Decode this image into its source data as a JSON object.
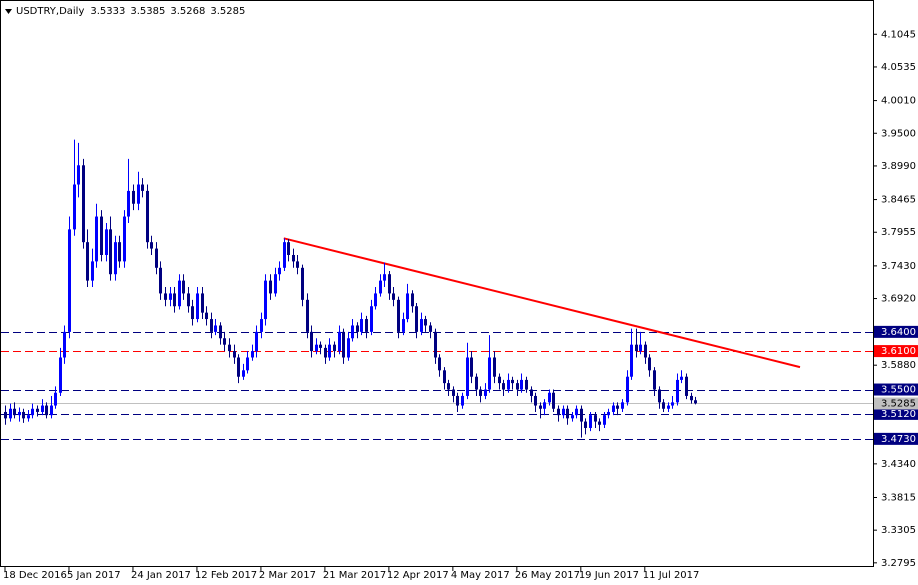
{
  "chart_data": {
    "type": "candlestick",
    "title": "USDTRY,Daily",
    "up_color": "#0000ff",
    "down_color": "#000080",
    "ylim": [
      3.273,
      4.158
    ],
    "yticks": [
      4.1045,
      4.0535,
      {
        "value": 4.001,
        "label": "4.0010"
      },
      {
        "value": 3.95,
        "label": "3.9500"
      },
      {
        "value": 3.899,
        "label": "3.8990"
      },
      3.8465,
      3.7955,
      {
        "value": 3.743,
        "label": "3.7430"
      },
      {
        "value": 3.692,
        "label": "3.6920"
      },
      {
        "value": 3.588,
        "label": "3.5880"
      },
      {
        "value": 3.434,
        "label": "3.4340"
      },
      3.3815,
      3.3305,
      3.2795
    ],
    "levels": [
      {
        "value": 3.64,
        "label": "3.6400",
        "color": "#000080"
      },
      {
        "value": 3.61,
        "label": "3.6100",
        "color": "#ff0000"
      },
      {
        "value": 3.55,
        "label": "3.5500",
        "color": "#000080"
      },
      {
        "value": 3.512,
        "label": "3.5120",
        "color": "#000080"
      },
      {
        "value": 3.473,
        "label": "3.4730",
        "color": "#000080"
      }
    ],
    "trendline": {
      "color": "#ff0000",
      "values": [
        3.786,
        3.585
      ]
    },
    "categories": [
      "18 Dec 2016",
      null,
      null,
      null,
      null,
      null,
      null,
      null,
      null,
      null,
      null,
      null,
      null,
      null,
      "5 Jan 2017",
      null,
      null,
      null,
      null,
      null,
      null,
      null,
      null,
      null,
      null,
      null,
      null,
      null,
      "24 Jan 2017",
      null,
      null,
      null,
      null,
      null,
      null,
      null,
      null,
      null,
      null,
      null,
      null,
      null,
      "12 Feb 2017",
      null,
      null,
      null,
      null,
      null,
      null,
      null,
      null,
      null,
      null,
      null,
      null,
      null,
      "2 Mar 2017",
      null,
      null,
      null,
      null,
      null,
      null,
      null,
      null,
      null,
      null,
      null,
      null,
      null,
      "21 Mar 2017",
      null,
      null,
      null,
      null,
      null,
      null,
      null,
      null,
      null,
      null,
      null,
      null,
      null,
      "12 Apr 2017",
      null,
      null,
      null,
      null,
      null,
      null,
      null,
      null,
      null,
      null,
      null,
      null,
      null,
      "4 May 2017",
      null,
      null,
      null,
      null,
      null,
      null,
      null,
      null,
      null,
      null,
      null,
      null,
      null,
      "26 May 2017",
      null,
      null,
      null,
      null,
      null,
      null,
      null,
      null,
      null,
      null,
      null,
      null,
      null,
      "19 Jun 2017",
      null,
      null,
      null,
      null,
      null,
      null,
      null,
      null,
      null,
      null,
      null,
      null,
      null,
      "11 Jul 2017",
      null,
      null,
      null,
      null,
      null,
      null,
      null,
      null,
      null,
      null,
      null
    ],
    "ohlc": [
      [
        3.515,
        3.525,
        3.495,
        3.505
      ],
      [
        3.505,
        3.528,
        3.5,
        3.52
      ],
      [
        3.52,
        3.53,
        3.505,
        3.51
      ],
      [
        3.51,
        3.522,
        3.5,
        3.515
      ],
      [
        3.515,
        3.52,
        3.498,
        3.505
      ],
      [
        3.505,
        3.518,
        3.5,
        3.51
      ],
      [
        3.51,
        3.528,
        3.505,
        3.52
      ],
      [
        3.52,
        3.525,
        3.508,
        3.515
      ],
      [
        3.515,
        3.535,
        3.51,
        3.525
      ],
      [
        3.525,
        3.53,
        3.505,
        3.51
      ],
      [
        3.51,
        3.54,
        3.505,
        3.525
      ],
      [
        3.525,
        3.555,
        3.52,
        3.545
      ],
      [
        3.545,
        3.615,
        3.54,
        3.6
      ],
      [
        3.6,
        3.65,
        3.59,
        3.64
      ],
      [
        3.64,
        3.82,
        3.63,
        3.8
      ],
      [
        3.8,
        3.94,
        3.79,
        3.87
      ],
      [
        3.87,
        3.935,
        3.85,
        3.9
      ],
      [
        3.9,
        3.91,
        3.77,
        3.78
      ],
      [
        3.78,
        3.8,
        3.71,
        3.72
      ],
      [
        3.72,
        3.77,
        3.71,
        3.75
      ],
      [
        3.75,
        3.84,
        3.74,
        3.82
      ],
      [
        3.82,
        3.83,
        3.75,
        3.76
      ],
      [
        3.76,
        3.81,
        3.75,
        3.8
      ],
      [
        3.8,
        3.82,
        3.72,
        3.73
      ],
      [
        3.73,
        3.79,
        3.72,
        3.78
      ],
      [
        3.78,
        3.79,
        3.74,
        3.75
      ],
      [
        3.75,
        3.83,
        3.74,
        3.82
      ],
      [
        3.82,
        3.91,
        3.81,
        3.86
      ],
      [
        3.86,
        3.87,
        3.83,
        3.84
      ],
      [
        3.84,
        3.89,
        3.83,
        3.87
      ],
      [
        3.87,
        3.88,
        3.85,
        3.86
      ],
      [
        3.86,
        3.87,
        3.77,
        3.78
      ],
      [
        3.78,
        3.79,
        3.76,
        3.77
      ],
      [
        3.77,
        3.78,
        3.73,
        3.74
      ],
      [
        3.74,
        3.75,
        3.69,
        3.7
      ],
      [
        3.7,
        3.71,
        3.68,
        3.69
      ],
      [
        3.69,
        3.71,
        3.68,
        3.7
      ],
      [
        3.7,
        3.71,
        3.67,
        3.68
      ],
      [
        3.68,
        3.73,
        3.675,
        3.72
      ],
      [
        3.72,
        3.73,
        3.69,
        3.7
      ],
      [
        3.7,
        3.71,
        3.67,
        3.68
      ],
      [
        3.68,
        3.69,
        3.65,
        3.66
      ],
      [
        3.66,
        3.71,
        3.655,
        3.7
      ],
      [
        3.7,
        3.71,
        3.66,
        3.67
      ],
      [
        3.67,
        3.68,
        3.65,
        3.66
      ],
      [
        3.66,
        3.67,
        3.63,
        3.64
      ],
      [
        3.64,
        3.66,
        3.635,
        3.65
      ],
      [
        3.65,
        3.655,
        3.62,
        3.63
      ],
      [
        3.63,
        3.64,
        3.61,
        3.62
      ],
      [
        3.62,
        3.63,
        3.6,
        3.61
      ],
      [
        3.61,
        3.62,
        3.59,
        3.6
      ],
      [
        3.6,
        3.605,
        3.56,
        3.57
      ],
      [
        3.57,
        3.59,
        3.565,
        3.58
      ],
      [
        3.58,
        3.61,
        3.575,
        3.6
      ],
      [
        3.6,
        3.62,
        3.595,
        3.61
      ],
      [
        3.61,
        3.65,
        3.6,
        3.64
      ],
      [
        3.64,
        3.67,
        3.63,
        3.66
      ],
      [
        3.66,
        3.73,
        3.65,
        3.72
      ],
      [
        3.72,
        3.73,
        3.69,
        3.7
      ],
      [
        3.7,
        3.74,
        3.695,
        3.73
      ],
      [
        3.73,
        3.75,
        3.72,
        3.74
      ],
      [
        3.74,
        3.786,
        3.735,
        3.78
      ],
      [
        3.78,
        3.785,
        3.75,
        3.76
      ],
      [
        3.76,
        3.77,
        3.74,
        3.75
      ],
      [
        3.75,
        3.76,
        3.73,
        3.74
      ],
      [
        3.74,
        3.745,
        3.68,
        3.69
      ],
      [
        3.69,
        3.7,
        3.63,
        3.64
      ],
      [
        3.64,
        3.65,
        3.6,
        3.61
      ],
      [
        3.61,
        3.63,
        3.605,
        3.62
      ],
      [
        3.62,
        3.625,
        3.605,
        3.615
      ],
      [
        3.615,
        3.62,
        3.59,
        3.6
      ],
      [
        3.6,
        3.63,
        3.595,
        3.62
      ],
      [
        3.62,
        3.625,
        3.6,
        3.61
      ],
      [
        3.61,
        3.65,
        3.605,
        3.64
      ],
      [
        3.64,
        3.645,
        3.59,
        3.6
      ],
      [
        3.6,
        3.64,
        3.595,
        3.63
      ],
      [
        3.63,
        3.66,
        3.625,
        3.65
      ],
      [
        3.65,
        3.655,
        3.63,
        3.64
      ],
      [
        3.64,
        3.67,
        3.635,
        3.66
      ],
      [
        3.66,
        3.665,
        3.63,
        3.64
      ],
      [
        3.64,
        3.69,
        3.635,
        3.68
      ],
      [
        3.68,
        3.71,
        3.675,
        3.7
      ],
      [
        3.7,
        3.73,
        3.695,
        3.72
      ],
      [
        3.72,
        3.748,
        3.71,
        3.73
      ],
      [
        3.73,
        3.735,
        3.69,
        3.7
      ],
      [
        3.7,
        3.71,
        3.68,
        3.69
      ],
      [
        3.69,
        3.695,
        3.63,
        3.64
      ],
      [
        3.64,
        3.67,
        3.635,
        3.66
      ],
      [
        3.66,
        3.715,
        3.655,
        3.7
      ],
      [
        3.7,
        3.705,
        3.67,
        3.68
      ],
      [
        3.68,
        3.685,
        3.63,
        3.64
      ],
      [
        3.64,
        3.67,
        3.635,
        3.66
      ],
      [
        3.66,
        3.665,
        3.64,
        3.65
      ],
      [
        3.65,
        3.655,
        3.63,
        3.64
      ],
      [
        3.64,
        3.645,
        3.59,
        3.6
      ],
      [
        3.6,
        3.605,
        3.57,
        3.58
      ],
      [
        3.58,
        3.585,
        3.55,
        3.56
      ],
      [
        3.56,
        3.565,
        3.54,
        3.55
      ],
      [
        3.55,
        3.555,
        3.53,
        3.54
      ],
      [
        3.54,
        3.545,
        3.515,
        3.525
      ],
      [
        3.525,
        3.545,
        3.52,
        3.54
      ],
      [
        3.54,
        3.623,
        3.535,
        3.6
      ],
      [
        3.6,
        3.61,
        3.56,
        3.57
      ],
      [
        3.57,
        3.575,
        3.54,
        3.55
      ],
      [
        3.55,
        3.555,
        3.53,
        3.54
      ],
      [
        3.54,
        3.56,
        3.535,
        3.55
      ],
      [
        3.55,
        3.635,
        3.545,
        3.6
      ],
      [
        3.6,
        3.61,
        3.56,
        3.57
      ],
      [
        3.57,
        3.575,
        3.55,
        3.56
      ],
      [
        3.56,
        3.565,
        3.54,
        3.55
      ],
      [
        3.55,
        3.575,
        3.545,
        3.565
      ],
      [
        3.565,
        3.57,
        3.55,
        3.56
      ],
      [
        3.56,
        3.565,
        3.54,
        3.55
      ],
      [
        3.55,
        3.575,
        3.545,
        3.565
      ],
      [
        3.565,
        3.57,
        3.545,
        3.55
      ],
      [
        3.55,
        3.555,
        3.53,
        3.54
      ],
      [
        3.54,
        3.545,
        3.515,
        3.525
      ],
      [
        3.525,
        3.53,
        3.505,
        3.52
      ],
      [
        3.52,
        3.535,
        3.51,
        3.53
      ],
      [
        3.53,
        3.55,
        3.525,
        3.545
      ],
      [
        3.545,
        3.55,
        3.515,
        3.52
      ],
      [
        3.52,
        3.525,
        3.5,
        3.51
      ],
      [
        3.51,
        3.525,
        3.505,
        3.52
      ],
      [
        3.52,
        3.525,
        3.495,
        3.505
      ],
      [
        3.505,
        3.515,
        3.5,
        3.51
      ],
      [
        3.51,
        3.525,
        3.505,
        3.52
      ],
      [
        3.52,
        3.525,
        3.475,
        3.5
      ],
      [
        3.5,
        3.505,
        3.48,
        3.49
      ],
      [
        3.49,
        3.515,
        3.485,
        3.51
      ],
      [
        3.51,
        3.515,
        3.49,
        3.5
      ],
      [
        3.5,
        3.505,
        3.485,
        3.495
      ],
      [
        3.495,
        3.515,
        3.49,
        3.51
      ],
      [
        3.51,
        3.52,
        3.505,
        3.515
      ],
      [
        3.515,
        3.53,
        3.51,
        3.525
      ],
      [
        3.525,
        3.53,
        3.51,
        3.52
      ],
      [
        3.52,
        3.535,
        3.515,
        3.53
      ],
      [
        3.53,
        3.58,
        3.525,
        3.57
      ],
      [
        3.57,
        3.645,
        3.565,
        3.62
      ],
      [
        3.62,
        3.645,
        3.6,
        3.61
      ],
      [
        3.61,
        3.64,
        3.605,
        3.62
      ],
      [
        3.62,
        3.625,
        3.59,
        3.6
      ],
      [
        3.6,
        3.605,
        3.57,
        3.58
      ],
      [
        3.58,
        3.585,
        3.54,
        3.55
      ],
      [
        3.55,
        3.555,
        3.52,
        3.53
      ],
      [
        3.53,
        3.535,
        3.515,
        3.52
      ],
      [
        3.52,
        3.53,
        3.515,
        3.525
      ],
      [
        3.525,
        3.54,
        3.52,
        3.53
      ],
      [
        3.53,
        3.575,
        3.525,
        3.565
      ],
      [
        3.565,
        3.58,
        3.56,
        3.57
      ],
      [
        3.57,
        3.575,
        3.535,
        3.54
      ],
      [
        3.54,
        3.545,
        3.528,
        3.5333
      ],
      [
        3.5333,
        3.5385,
        3.5268,
        3.5285
      ]
    ]
  }
}
